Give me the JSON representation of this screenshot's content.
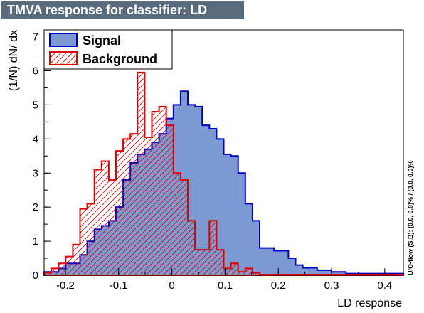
{
  "chart_data": {
    "type": "area",
    "title": "TMVA response for classifier: LD",
    "xlabel": "LD response",
    "ylabel": "(1/N) dN/ dx",
    "side_label": "U/O-flow (S,B): (0.0, 0.0)% / (0.0, 0.0)%",
    "xlim": [
      -0.24,
      0.435
    ],
    "ylim": [
      0,
      7.2
    ],
    "bin_start": -0.24,
    "bin_width": 0.0135,
    "x_ticks": [
      -0.2,
      -0.1,
      0,
      0.1,
      0.2,
      0.3,
      0.4
    ],
    "x_tick_labels": [
      "-0.2",
      "-0.1",
      "0",
      "0.1",
      "0.2",
      "0.3",
      "0.4"
    ],
    "y_ticks": [
      0,
      1,
      2,
      3,
      4,
      5,
      6,
      7
    ],
    "y_tick_labels": [
      "0",
      "1",
      "2",
      "3",
      "4",
      "5",
      "6",
      "7"
    ],
    "grid": false,
    "legend_position": "top-left",
    "series": [
      {
        "name": "Signal",
        "style": "filled",
        "line_color": "#0000cc",
        "fill_color": "#7d99d1",
        "values": [
          0.1,
          0.1,
          0.2,
          0.35,
          0.35,
          0.6,
          1.0,
          1.35,
          1.45,
          1.6,
          2.0,
          2.8,
          3.3,
          3.55,
          3.7,
          3.9,
          4.15,
          4.6,
          5.0,
          5.4,
          5.0,
          4.95,
          4.4,
          4.3,
          4.0,
          3.55,
          3.5,
          3.0,
          2.1,
          1.6,
          0.8,
          0.8,
          0.72,
          0.72,
          0.5,
          0.3,
          0.22,
          0.22,
          0.15,
          0.15,
          0.1,
          0.1,
          0.05,
          0.05,
          0.05,
          0.05,
          0.05,
          0.05,
          0.05,
          0.05
        ]
      },
      {
        "name": "Background",
        "style": "hatched",
        "line_color": "#e00000",
        "values": [
          0.07,
          0.2,
          0.35,
          0.55,
          0.9,
          1.95,
          2.1,
          3.1,
          3.35,
          2.8,
          3.65,
          4.0,
          4.15,
          5.95,
          4.05,
          4.8,
          4.95,
          4.4,
          3.0,
          2.8,
          1.6,
          0.75,
          0.75,
          1.6,
          0.75,
          0.2,
          0.35,
          0.1,
          0.2,
          0.07,
          0.02,
          0.02,
          0.02,
          0.02,
          0.02,
          0.02,
          0.02,
          0.02,
          0.02,
          0.02,
          0.02,
          0.02,
          0.02,
          0.02,
          0.02,
          0.02,
          0.02,
          0.02,
          0.02,
          0.02
        ]
      }
    ]
  }
}
